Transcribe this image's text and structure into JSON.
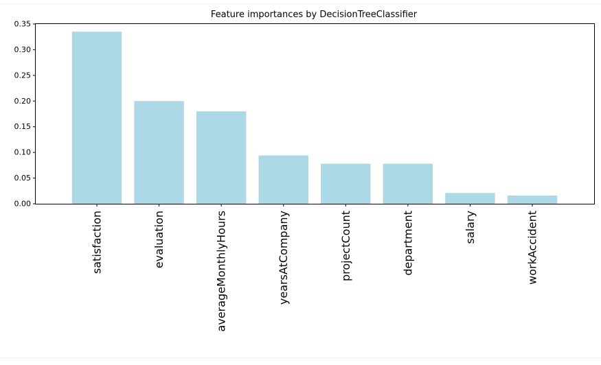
{
  "chart_data": {
    "type": "bar",
    "title": "Feature importances by DecisionTreeClassifier",
    "xlabel": "",
    "ylabel": "",
    "categories": [
      "satisfaction",
      "evaluation",
      "averageMonthlyHours",
      "yearsAtCompany",
      "projectCount",
      "department",
      "salary",
      "workAccident"
    ],
    "values": [
      0.335,
      0.2,
      0.18,
      0.094,
      0.078,
      0.078,
      0.021,
      0.016
    ],
    "ylim": [
      0,
      0.35
    ],
    "yticks": [
      "0.00",
      "0.05",
      "0.10",
      "0.15",
      "0.20",
      "0.25",
      "0.30",
      "0.35"
    ],
    "bar_color": "#add8e6",
    "grid": false,
    "legend": "none",
    "x_tick_rotation": "vertical"
  }
}
